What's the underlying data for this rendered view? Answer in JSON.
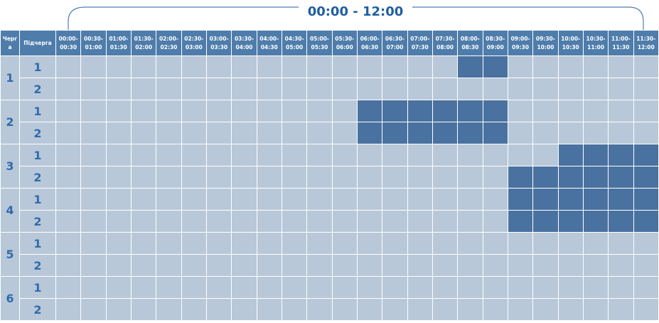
{
  "header": {
    "title": "00:00 - 12:00"
  },
  "table": {
    "columns": [
      "Черг\nа",
      "Підчерга",
      "00:00-\n00:30",
      "00:30-\n01:00",
      "01:00-\n01:30",
      "01:30-\n02:00",
      "02:00-\n02:30",
      "02:30-\n03:00",
      "03:00-\n03:30",
      "03:30-\n04:00",
      "04:00-\n04:30",
      "04:30-\n05:00",
      "05:00-\n05:30",
      "05:30-\n06:00",
      "06:00-\n06:30",
      "06:30-\n07:00",
      "07:00-\n07:30",
      "07:30-\n08:00",
      "08:00-\n08:30",
      "08:30-\n09:00",
      "09:00-\n09:30",
      "09:30-\n10:00",
      "10:00-\n10:30",
      "10:30-\n11:00",
      "11:00-\n11:30",
      "11:30-\n12:00"
    ],
    "rows": [
      {
        "queue": "1",
        "subqueues": [
          {
            "label": "1",
            "slots": [
              0,
              0,
              0,
              0,
              0,
              0,
              0,
              0,
              0,
              0,
              0,
              0,
              0,
              0,
              0,
              0,
              1,
              1,
              0,
              0,
              0,
              0,
              0,
              0
            ]
          },
          {
            "label": "2",
            "slots": [
              0,
              0,
              0,
              0,
              0,
              0,
              0,
              0,
              0,
              0,
              0,
              0,
              0,
              0,
              0,
              0,
              0,
              0,
              0,
              0,
              0,
              0,
              0,
              0
            ]
          }
        ]
      },
      {
        "queue": "2",
        "subqueues": [
          {
            "label": "1",
            "slots": [
              0,
              0,
              0,
              0,
              0,
              0,
              0,
              0,
              0,
              0,
              0,
              0,
              1,
              1,
              1,
              1,
              1,
              1,
              0,
              0,
              0,
              0,
              0,
              0
            ]
          },
          {
            "label": "2",
            "slots": [
              0,
              0,
              0,
              0,
              0,
              0,
              0,
              0,
              0,
              0,
              0,
              0,
              1,
              1,
              1,
              1,
              1,
              1,
              0,
              0,
              0,
              0,
              0,
              0
            ]
          }
        ]
      },
      {
        "queue": "3",
        "subqueues": [
          {
            "label": "1",
            "slots": [
              0,
              0,
              0,
              0,
              0,
              0,
              0,
              0,
              0,
              0,
              0,
              0,
              0,
              0,
              0,
              0,
              0,
              0,
              0,
              0,
              1,
              1,
              1,
              1
            ]
          },
          {
            "label": "2",
            "slots": [
              0,
              0,
              0,
              0,
              0,
              0,
              0,
              0,
              0,
              0,
              0,
              0,
              0,
              0,
              0,
              0,
              0,
              0,
              1,
              1,
              1,
              1,
              1,
              1
            ]
          }
        ]
      },
      {
        "queue": "4",
        "subqueues": [
          {
            "label": "1",
            "slots": [
              0,
              0,
              0,
              0,
              0,
              0,
              0,
              0,
              0,
              0,
              0,
              0,
              0,
              0,
              0,
              0,
              0,
              0,
              1,
              1,
              1,
              1,
              1,
              1
            ]
          },
          {
            "label": "2",
            "slots": [
              0,
              0,
              0,
              0,
              0,
              0,
              0,
              0,
              0,
              0,
              0,
              0,
              0,
              0,
              0,
              0,
              0,
              0,
              1,
              1,
              1,
              1,
              1,
              1
            ]
          }
        ]
      },
      {
        "queue": "5",
        "subqueues": [
          {
            "label": "1",
            "slots": [
              0,
              0,
              0,
              0,
              0,
              0,
              0,
              0,
              0,
              0,
              0,
              0,
              0,
              0,
              0,
              0,
              0,
              0,
              0,
              0,
              0,
              0,
              0,
              0
            ]
          },
          {
            "label": "2",
            "slots": [
              0,
              0,
              0,
              0,
              0,
              0,
              0,
              0,
              0,
              0,
              0,
              0,
              0,
              0,
              0,
              0,
              0,
              0,
              0,
              0,
              0,
              0,
              0,
              0
            ]
          }
        ]
      },
      {
        "queue": "6",
        "subqueues": [
          {
            "label": "1",
            "slots": [
              0,
              0,
              0,
              0,
              0,
              0,
              0,
              0,
              0,
              0,
              0,
              0,
              0,
              0,
              0,
              0,
              0,
              0,
              0,
              0,
              0,
              0,
              0,
              0
            ]
          },
          {
            "label": "2",
            "slots": [
              0,
              0,
              0,
              0,
              0,
              0,
              0,
              0,
              0,
              0,
              0,
              0,
              0,
              0,
              0,
              0,
              0,
              0,
              0,
              0,
              0,
              0,
              0,
              0
            ]
          }
        ]
      }
    ]
  }
}
